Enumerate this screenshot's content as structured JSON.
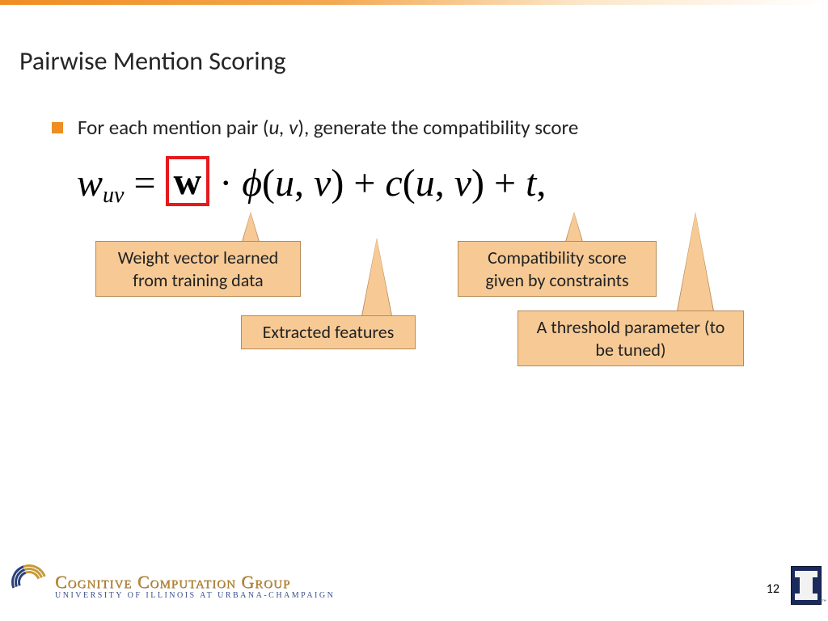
{
  "slide": {
    "title": "Pairwise Mention Scoring",
    "bullet": {
      "prefix": "For each mention pair (",
      "var_u": "u",
      "comma": ", ",
      "var_v": "v",
      "suffix": "), generate the compatibility score"
    },
    "formula": {
      "w": "w",
      "sub_uv": "uv",
      "equals": " = ",
      "w_bold": "w",
      "dot": " · ",
      "phi": "ϕ",
      "paren_open": "(",
      "u": "u",
      "comma1": ", ",
      "v": "v",
      "paren_close": ")",
      "plus1": " + ",
      "c": "c",
      "paren_open2": "(",
      "u2": "u",
      "comma2": ", ",
      "v2": "v",
      "paren_close2": ")",
      "plus2": " + ",
      "t": "t",
      "trailing_comma": ","
    },
    "callouts": {
      "weight": "Weight vector learned from training data",
      "features": "Extracted features",
      "constraints": "Compatibility score given by constraints",
      "threshold": "A threshold parameter (to be tuned)"
    },
    "footer": {
      "logo_main": "Cognitive Computation Group",
      "logo_sub": "University of Illinois at Urbana-Champaign",
      "page_number": "12"
    },
    "colors": {
      "accent": "#ef8d22",
      "callout_bg": "#f7ca95",
      "callout_border": "#b78a56",
      "highlight_box": "#e41a1c",
      "illinois_blue": "#1a2a5c"
    }
  }
}
